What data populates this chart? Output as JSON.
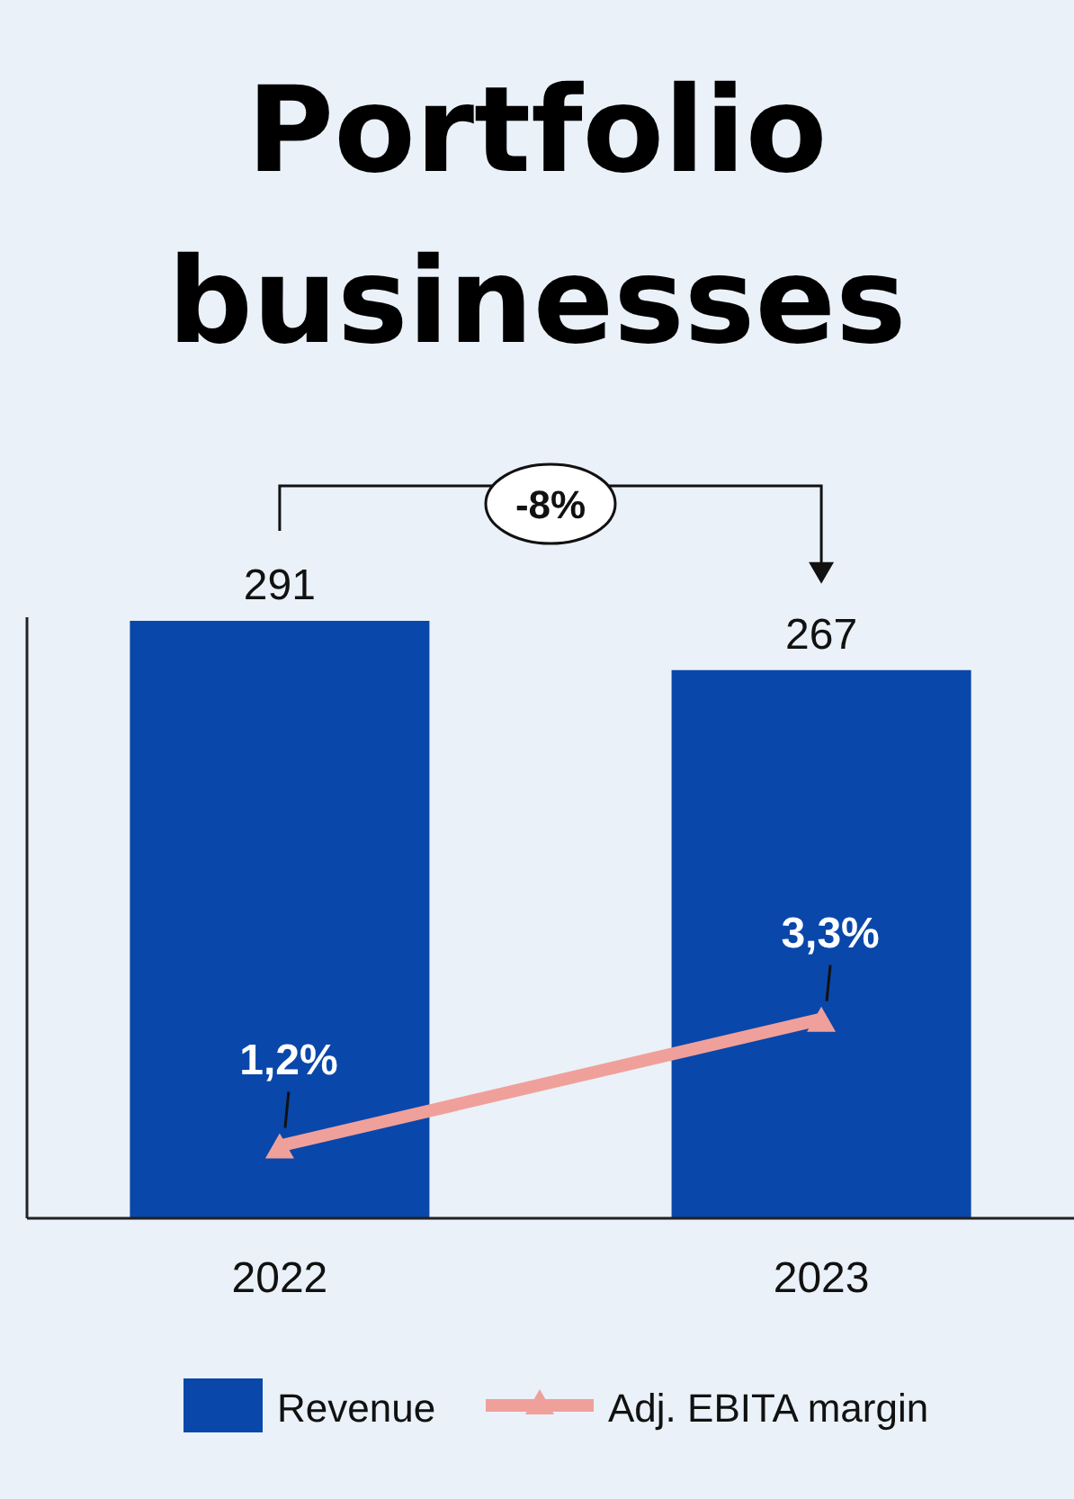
{
  "chart_data": {
    "type": "bar",
    "title": "Portfolio businesses",
    "categories": [
      "2022",
      "2023"
    ],
    "series": [
      {
        "name": "Revenue",
        "color": "#0a47aa",
        "values": [
          291,
          267
        ]
      },
      {
        "name": "Adj. EBITA margin",
        "type": "line",
        "axis": "y2",
        "color": "#f0a09a",
        "values": [
          1.2,
          3.3
        ],
        "value_labels": [
          "1,2%",
          "3,3%"
        ],
        "marker": "triangle"
      }
    ],
    "data_labels": true,
    "ylim": [
      0,
      291
    ],
    "tick_labels": "x",
    "legend": "bottom",
    "annotations": [
      "-8%"
    ]
  }
}
